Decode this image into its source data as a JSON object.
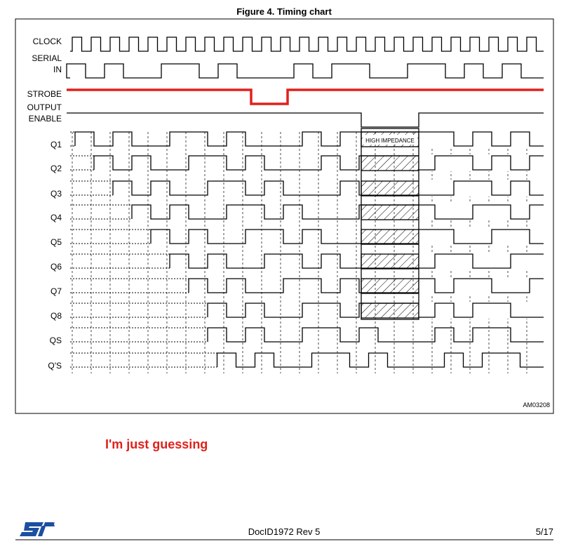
{
  "header": {
    "title": "Figure 4. Timing chart"
  },
  "diagram": {
    "signals": [
      [
        "CLOCK"
      ],
      [
        "SERIAL",
        "IN"
      ],
      [
        "STROBE"
      ],
      [
        "OUTPUT",
        "ENABLE"
      ],
      [
        "Q1"
      ],
      [
        "Q2"
      ],
      [
        "Q3"
      ],
      [
        "Q4"
      ],
      [
        "Q5"
      ],
      [
        "Q6"
      ],
      [
        "Q7"
      ],
      [
        "Q8"
      ],
      [
        "QS"
      ],
      [
        "Q'S"
      ]
    ],
    "high_impedance": "HIGH IMPEDANCE",
    "figure_id": "AM03208"
  },
  "note": "I'm just guessing",
  "footer": {
    "doc_id": "DocID1972 Rev 5",
    "page": "5/17"
  }
}
